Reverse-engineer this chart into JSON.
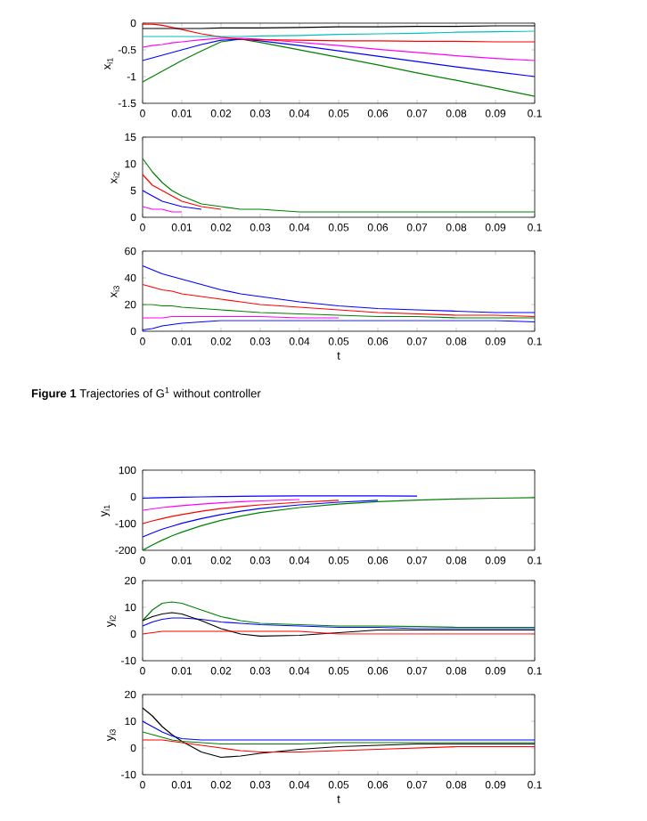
{
  "chart_data": [
    {
      "type": "line",
      "ylabel": "x$_{i1}$",
      "x": [
        0,
        0.0025,
        0.005,
        0.0075,
        0.01,
        0.015,
        0.02,
        0.025,
        0.03,
        0.04,
        0.05,
        0.06,
        0.07,
        0.08,
        0.09,
        0.1
      ],
      "xlim": [
        0,
        0.1
      ],
      "xticks": [
        0,
        0.01,
        0.02,
        0.03,
        0.04,
        0.05,
        0.06,
        0.07,
        0.08,
        0.09,
        0.1
      ],
      "ylim": [
        -1.5,
        0
      ],
      "yticks": [
        -1.5,
        -1,
        -0.5,
        0
      ],
      "line_style": "solid",
      "series": [
        {
          "color": "#008000",
          "values": [
            -1.1,
            -1.0,
            -0.9,
            -0.8,
            -0.7,
            -0.52,
            -0.35,
            -0.3,
            -0.36,
            -0.5,
            -0.64,
            -0.78,
            -0.93,
            -1.07,
            -1.22,
            -1.37
          ]
        },
        {
          "color": "#0000ff",
          "values": [
            -0.7,
            -0.65,
            -0.6,
            -0.55,
            -0.5,
            -0.4,
            -0.32,
            -0.3,
            -0.33,
            -0.42,
            -0.52,
            -0.62,
            -0.72,
            -0.82,
            -0.91,
            -1.0
          ]
        },
        {
          "color": "#ff00ff",
          "values": [
            -0.45,
            -0.42,
            -0.4,
            -0.37,
            -0.35,
            -0.31,
            -0.28,
            -0.28,
            -0.3,
            -0.36,
            -0.42,
            -0.49,
            -0.55,
            -0.61,
            -0.66,
            -0.7
          ]
        },
        {
          "color": "#ff0000",
          "values": [
            -0.02,
            -0.02,
            -0.04,
            -0.08,
            -0.12,
            -0.2,
            -0.26,
            -0.3,
            -0.31,
            -0.32,
            -0.33,
            -0.33,
            -0.34,
            -0.34,
            -0.35,
            -0.35
          ]
        },
        {
          "color": "#00bfbf",
          "values": [
            -0.25,
            -0.25,
            -0.25,
            -0.25,
            -0.25,
            -0.25,
            -0.25,
            -0.25,
            -0.24,
            -0.23,
            -0.21,
            -0.2,
            -0.19,
            -0.17,
            -0.16,
            -0.15
          ]
        },
        {
          "color": "#000000",
          "values": [
            -0.1,
            -0.1,
            -0.1,
            -0.1,
            -0.1,
            -0.1,
            -0.09,
            -0.09,
            -0.09,
            -0.08,
            -0.07,
            -0.07,
            -0.06,
            -0.06,
            -0.05,
            -0.05
          ]
        }
      ]
    },
    {
      "type": "line",
      "ylabel": "x$_{i2}$",
      "x": [
        0,
        0.0025,
        0.005,
        0.0075,
        0.01,
        0.015,
        0.02,
        0.025,
        0.03,
        0.04,
        0.05,
        0.06,
        0.07,
        0.08,
        0.09,
        0.1
      ],
      "xlim": [
        0,
        0.1
      ],
      "xticks": [
        0,
        0.01,
        0.02,
        0.03,
        0.04,
        0.05,
        0.06,
        0.07,
        0.08,
        0.09,
        0.1
      ],
      "ylim": [
        0,
        15
      ],
      "yticks": [
        0,
        5,
        10,
        15
      ],
      "line_style": "solid",
      "series": [
        {
          "color": "#008000",
          "values": [
            11,
            8.5,
            6.5,
            5,
            4,
            2.5,
            2,
            1.5,
            1.5,
            1,
            1,
            1,
            1,
            1,
            1,
            1
          ]
        },
        {
          "color": "#ff0000",
          "values": [
            8,
            6,
            5,
            4,
            3,
            2,
            1.5,
            null,
            null,
            null,
            null,
            null,
            null,
            null,
            null,
            null
          ]
        },
        {
          "color": "#0000ff",
          "values": [
            5,
            4,
            3,
            2.5,
            2,
            1.5,
            null,
            null,
            null,
            null,
            null,
            null,
            null,
            null,
            null,
            null
          ]
        },
        {
          "color": "#ff00ff",
          "values": [
            2,
            1.5,
            1.5,
            1,
            1,
            null,
            null,
            null,
            null,
            null,
            null,
            null,
            null,
            null,
            null,
            null
          ]
        }
      ]
    },
    {
      "type": "line",
      "ylabel": "x$_{i3}$",
      "xlabel": "t",
      "annotations": [
        "**Figure 1** Trajectories of G$^{1}$ without controller"
      ],
      "x": [
        0,
        0.0025,
        0.005,
        0.0075,
        0.01,
        0.015,
        0.02,
        0.025,
        0.03,
        0.04,
        0.05,
        0.06,
        0.07,
        0.08,
        0.09,
        0.1
      ],
      "xlim": [
        0,
        0.1
      ],
      "xticks": [
        0,
        0.01,
        0.02,
        0.03,
        0.04,
        0.05,
        0.06,
        0.07,
        0.08,
        0.09,
        0.1
      ],
      "ylim": [
        0,
        60
      ],
      "yticks": [
        0,
        20,
        40,
        60
      ],
      "line_style": "solid",
      "series": [
        {
          "color": "#0000ff",
          "values": [
            49,
            46,
            43,
            41,
            39,
            35,
            31,
            28,
            26,
            22,
            19,
            17,
            16,
            15,
            14,
            14
          ]
        },
        {
          "color": "#ff0000",
          "values": [
            35,
            33,
            31,
            30,
            28,
            26,
            24,
            22,
            20,
            18,
            16,
            14,
            13,
            12,
            12,
            11
          ]
        },
        {
          "color": "#008000",
          "values": [
            20,
            20,
            19,
            19,
            18,
            17,
            16,
            15,
            14,
            13,
            12,
            11,
            11,
            10,
            10,
            10
          ]
        },
        {
          "color": "#ff00ff",
          "values": [
            10,
            10,
            10,
            11,
            11,
            11,
            11,
            11,
            11,
            10,
            10,
            null,
            null,
            null,
            null,
            null
          ]
        },
        {
          "color": "#0000ff",
          "values": [
            1,
            2,
            4,
            5,
            6,
            7,
            8,
            8,
            8,
            8,
            8,
            8,
            8,
            8,
            8,
            7
          ]
        }
      ]
    },
    {
      "type": "line",
      "ylabel": "y$_{i1}$",
      "x": [
        0,
        0.0025,
        0.005,
        0.0075,
        0.01,
        0.015,
        0.02,
        0.025,
        0.03,
        0.04,
        0.05,
        0.06,
        0.07,
        0.08,
        0.09,
        0.1
      ],
      "xlim": [
        0,
        0.1
      ],
      "xticks": [
        0,
        0.01,
        0.02,
        0.03,
        0.04,
        0.05,
        0.06,
        0.07,
        0.08,
        0.09,
        0.1
      ],
      "ylim": [
        -200,
        100
      ],
      "yticks": [
        -200,
        -100,
        0,
        100
      ],
      "line_style": "solid",
      "series": [
        {
          "color": "#008000",
          "values": [
            -200,
            -180,
            -162,
            -146,
            -132,
            -108,
            -88,
            -72,
            -59,
            -40,
            -27,
            -18,
            -12,
            -8,
            -5,
            -3
          ]
        },
        {
          "color": "#0000ff",
          "values": [
            -150,
            -135,
            -121,
            -110,
            -99,
            -81,
            -66,
            -54,
            -44,
            -30,
            -20,
            -13,
            null,
            null,
            null,
            null
          ]
        },
        {
          "color": "#ff0000",
          "values": [
            -100,
            -90,
            -81,
            -73,
            -66,
            -54,
            -44,
            -36,
            -30,
            -20,
            -13,
            null,
            null,
            null,
            null,
            null
          ]
        },
        {
          "color": "#ff00ff",
          "values": [
            -50,
            -45,
            -40,
            -36,
            -33,
            -27,
            -22,
            -18,
            -15,
            -10,
            null,
            null,
            null,
            null,
            null,
            null
          ]
        },
        {
          "color": "#0000ff",
          "values": [
            -5,
            -4,
            -3,
            -2,
            -1,
            0,
            1,
            2,
            3,
            4,
            4,
            4,
            3,
            null,
            null,
            null
          ]
        }
      ]
    },
    {
      "type": "line",
      "ylabel": "y$_{i2}$",
      "x": [
        0,
        0.0025,
        0.005,
        0.0075,
        0.01,
        0.015,
        0.02,
        0.025,
        0.03,
        0.04,
        0.05,
        0.06,
        0.07,
        0.08,
        0.09,
        0.1
      ],
      "xlim": [
        0,
        0.1
      ],
      "xticks": [
        0,
        0.01,
        0.02,
        0.03,
        0.04,
        0.05,
        0.06,
        0.07,
        0.08,
        0.09,
        0.1
      ],
      "ylim": [
        -10,
        20
      ],
      "yticks": [
        -10,
        0,
        10,
        20
      ],
      "line_style": "solid",
      "series": [
        {
          "color": "#008000",
          "values": [
            5,
            9,
            11.5,
            12,
            11.5,
            9,
            6.5,
            5,
            4,
            3.5,
            3,
            3,
            2.8,
            2.5,
            2.5,
            2.5
          ]
        },
        {
          "color": "#0000ff",
          "values": [
            3,
            4.5,
            5.5,
            6,
            6,
            5.5,
            4.5,
            4,
            3.5,
            3,
            2.5,
            2.5,
            2,
            2,
            2,
            2
          ]
        },
        {
          "color": "#000000",
          "values": [
            5,
            6.5,
            7.5,
            8,
            7.5,
            5,
            2,
            0,
            -0.8,
            -0.5,
            0.5,
            1.5,
            1.5,
            1.5,
            1.5,
            1.5
          ]
        },
        {
          "color": "#ff0000",
          "values": [
            0,
            0.5,
            1,
            1,
            1,
            1,
            1,
            1,
            1,
            1,
            0,
            0,
            0,
            0,
            0,
            0
          ]
        }
      ]
    },
    {
      "type": "line",
      "ylabel": "y$_{i3}$",
      "xlabel": "t",
      "x": [
        0,
        0.0025,
        0.005,
        0.0075,
        0.01,
        0.015,
        0.02,
        0.025,
        0.03,
        0.04,
        0.05,
        0.06,
        0.07,
        0.08,
        0.09,
        0.1
      ],
      "xlim": [
        0,
        0.1
      ],
      "xticks": [
        0,
        0.01,
        0.02,
        0.03,
        0.04,
        0.05,
        0.06,
        0.07,
        0.08,
        0.09,
        0.1
      ],
      "ylim": [
        -10,
        20
      ],
      "yticks": [
        -10,
        0,
        10,
        20
      ],
      "line_style": "solid",
      "series": [
        {
          "color": "#000000",
          "values": [
            15,
            12,
            8,
            5,
            2.5,
            -1.5,
            -3.5,
            -3,
            -2,
            -0.5,
            0.5,
            1,
            1.5,
            1.5,
            1.5,
            1.5
          ]
        },
        {
          "color": "#0000ff",
          "values": [
            10,
            8,
            6,
            4.5,
            3.5,
            3,
            3,
            3,
            3,
            3,
            3,
            3,
            3,
            3,
            3,
            3
          ]
        },
        {
          "color": "#008000",
          "values": [
            6,
            5,
            4,
            3,
            2.5,
            2,
            1.5,
            1.5,
            1.5,
            1.5,
            2,
            2,
            2,
            2,
            2,
            2
          ]
        },
        {
          "color": "#ff0000",
          "values": [
            3,
            3,
            3,
            2.5,
            2,
            1,
            0,
            -1,
            -1.5,
            -1.5,
            -1,
            -0.5,
            0,
            0.5,
            0.5,
            0.5
          ]
        }
      ]
    }
  ]
}
